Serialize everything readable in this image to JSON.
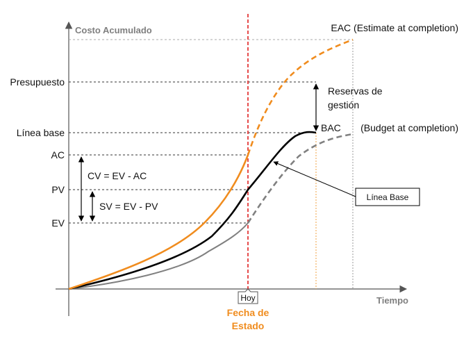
{
  "y_axis_title": "Costo Acumulado",
  "x_axis_title": "Tiempo",
  "y_labels": {
    "presupuesto": "Presupuesto",
    "linea_base": "Línea base",
    "ac": "AC",
    "pv": "PV",
    "ev": "EV"
  },
  "eac_label": "EAC (Estimate at completion)",
  "bac_short": "BAC",
  "bac_label": "(Budget at completion)",
  "reservas_line1": "Reservas de",
  "reservas_line2": "gestión",
  "cv_formula": "CV = EV - AC",
  "sv_formula": "SV = EV - PV",
  "linea_base_box": "Línea Base",
  "hoy": "Hoy",
  "fecha_line1": "Fecha de",
  "fecha_line2": "Estado",
  "colors": {
    "ac_curve": "#f08c1e",
    "pv_curve": "#000000",
    "ev_curve": "#808080",
    "status_date": "#e02020",
    "axis_titles": "#7f7f7f"
  }
}
